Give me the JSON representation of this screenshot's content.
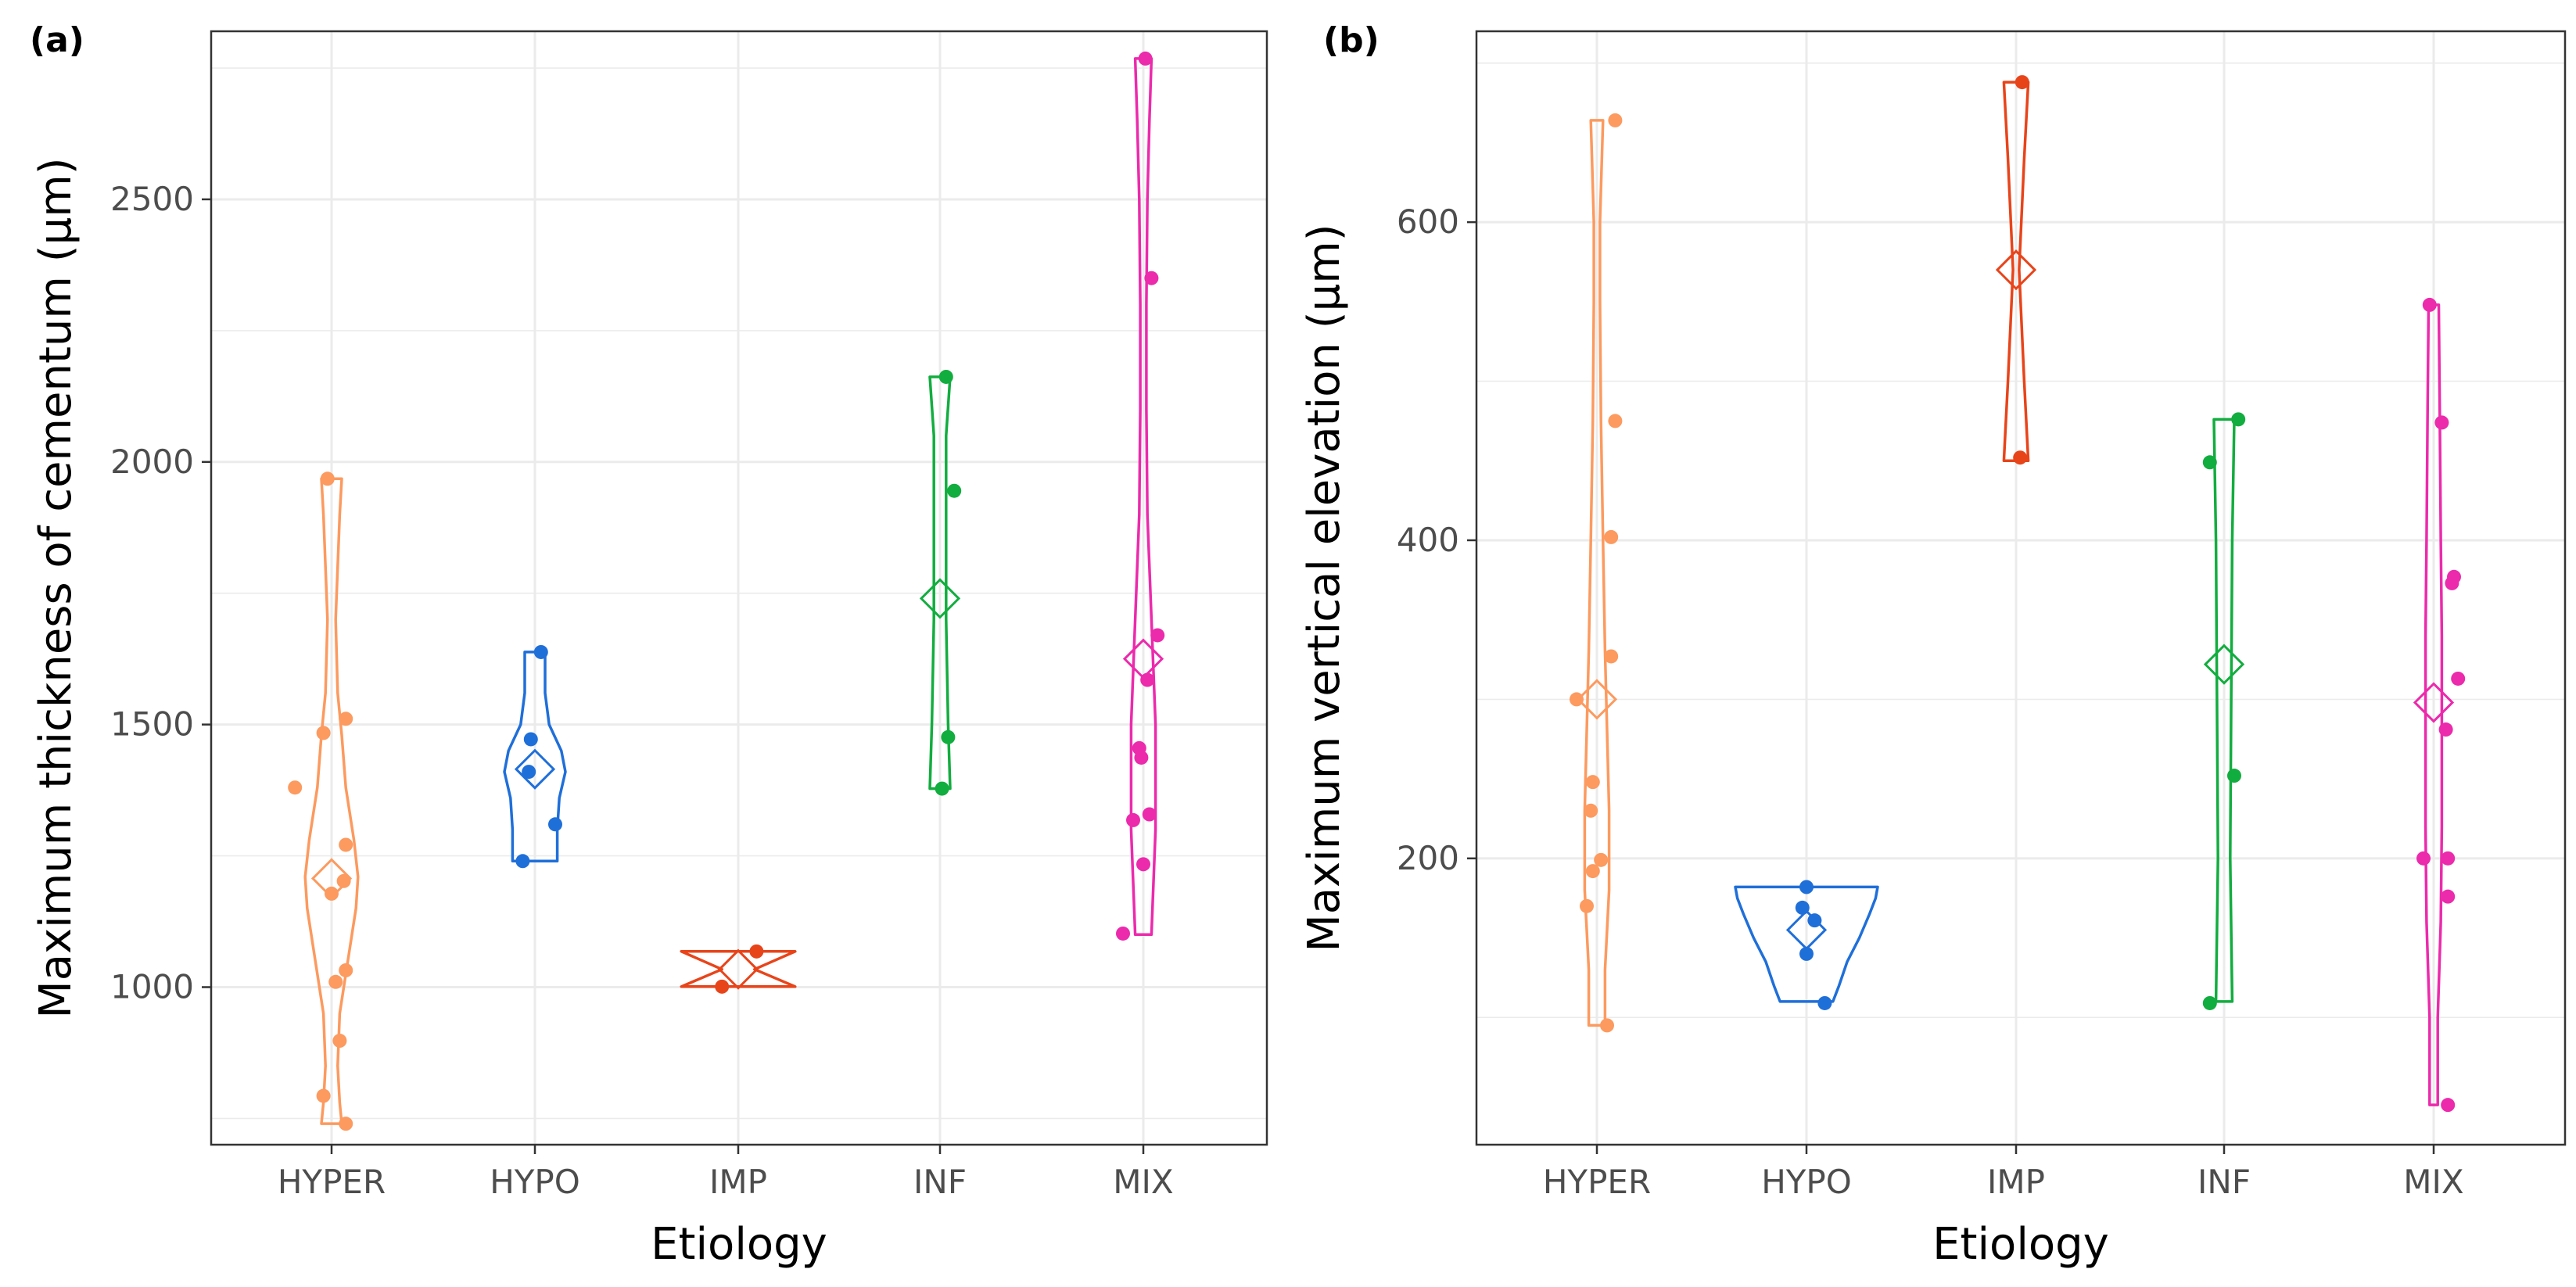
{
  "chart_data": [
    {
      "panel": "(a)",
      "type": "violin",
      "xlabel": "Etiology",
      "ylabel": "Maximum thickness of cementum (μm)",
      "categories": [
        "HYPER",
        "HYPO",
        "IMP",
        "INF",
        "MIX"
      ],
      "ylim": [
        700,
        2820
      ],
      "yticks": [
        1000,
        1500,
        2000,
        2500
      ],
      "grid": true,
      "colors": [
        "#fc9a5f",
        "#1f6fd9",
        "#e8441a",
        "#12ad3f",
        "#ec2aac"
      ],
      "series": [
        {
          "name": "HYPER",
          "mean": 1207,
          "points": [
            [
              -0.18,
              1380
            ],
            [
              -0.02,
              1968
            ],
            [
              -0.04,
              1484
            ],
            [
              0.07,
              1511
            ],
            [
              0.07,
              1271
            ],
            [
              0.06,
              1202
            ],
            [
              0.0,
              1178
            ],
            [
              0.02,
              1010
            ],
            [
              0.07,
              1032
            ],
            [
              0.04,
              898
            ],
            [
              -0.04,
              793
            ],
            [
              0.07,
              740
            ]
          ],
          "violin": [
            [
              740,
              0.05
            ],
            [
              780,
              0.04
            ],
            [
              850,
              0.03
            ],
            [
              950,
              0.04
            ],
            [
              1050,
              0.08
            ],
            [
              1150,
              0.12
            ],
            [
              1210,
              0.13
            ],
            [
              1280,
              0.11
            ],
            [
              1380,
              0.07
            ],
            [
              1480,
              0.05
            ],
            [
              1560,
              0.03
            ],
            [
              1700,
              0.02
            ],
            [
              1800,
              0.03
            ],
            [
              1900,
              0.04
            ],
            [
              1968,
              0.05
            ]
          ]
        },
        {
          "name": "HYPO",
          "mean": 1415,
          "points": [
            [
              -0.06,
              1240
            ],
            [
              -0.02,
              1472
            ],
            [
              -0.03,
              1410
            ],
            [
              0.03,
              1638
            ],
            [
              0.1,
              1310
            ]
          ],
          "violin": [
            [
              1240,
              0.11
            ],
            [
              1300,
              0.11
            ],
            [
              1360,
              0.12
            ],
            [
              1410,
              0.15
            ],
            [
              1450,
              0.13
            ],
            [
              1500,
              0.07
            ],
            [
              1560,
              0.05
            ],
            [
              1638,
              0.05
            ]
          ]
        },
        {
          "name": "IMP",
          "mean": 1034,
          "points": [
            [
              -0.08,
              1001
            ],
            [
              0.09,
              1068
            ]
          ],
          "violin": [
            [
              1001,
              0.28
            ],
            [
              1034,
              0.08
            ],
            [
              1068,
              0.28
            ]
          ]
        },
        {
          "name": "INF",
          "mean": 1740,
          "points": [
            [
              0.01,
              1378
            ],
            [
              0.04,
              1476
            ],
            [
              0.07,
              1945
            ],
            [
              0.03,
              2162
            ]
          ],
          "violin": [
            [
              1378,
              0.05
            ],
            [
              1500,
              0.04
            ],
            [
              1700,
              0.03
            ],
            [
              1900,
              0.03
            ],
            [
              2050,
              0.03
            ],
            [
              2162,
              0.05
            ]
          ]
        },
        {
          "name": "MIX",
          "mean": 1625,
          "points": [
            [
              -0.1,
              1102
            ],
            [
              -0.05,
              1318
            ],
            [
              -0.02,
              1455
            ],
            [
              -0.01,
              1437
            ],
            [
              0.0,
              1234
            ],
            [
              0.02,
              1585
            ],
            [
              0.03,
              1329
            ],
            [
              0.07,
              1670
            ],
            [
              0.04,
              2350
            ],
            [
              0.01,
              2768
            ]
          ],
          "violin": [
            [
              1100,
              0.04
            ],
            [
              1200,
              0.05
            ],
            [
              1300,
              0.06
            ],
            [
              1400,
              0.06
            ],
            [
              1500,
              0.06
            ],
            [
              1600,
              0.05
            ],
            [
              1700,
              0.04
            ],
            [
              1900,
              0.02
            ],
            [
              2100,
              0.015
            ],
            [
              2300,
              0.015
            ],
            [
              2500,
              0.02
            ],
            [
              2650,
              0.03
            ],
            [
              2768,
              0.04
            ]
          ]
        }
      ]
    },
    {
      "panel": "(b)",
      "type": "violin",
      "xlabel": "Etiology",
      "ylabel": "Maximum vertical elevation (μm)",
      "categories": [
        "HYPER",
        "HYPO",
        "IMP",
        "INF",
        "MIX"
      ],
      "ylim": [
        20,
        720
      ],
      "yticks": [
        200,
        400,
        600
      ],
      "grid": true,
      "colors": [
        "#fc9a5f",
        "#1f6fd9",
        "#e8441a",
        "#12ad3f",
        "#ec2aac"
      ],
      "series": [
        {
          "name": "HYPER",
          "mean": 300,
          "points": [
            [
              -0.1,
              300
            ],
            [
              0.09,
              664
            ],
            [
              0.09,
              475
            ],
            [
              0.07,
              402
            ],
            [
              0.07,
              327
            ],
            [
              -0.02,
              248
            ],
            [
              -0.03,
              230
            ],
            [
              0.02,
              199
            ],
            [
              -0.02,
              192
            ],
            [
              -0.05,
              170
            ],
            [
              0.05,
              95
            ]
          ],
          "violin": [
            [
              95,
              0.04
            ],
            [
              130,
              0.04
            ],
            [
              180,
              0.06
            ],
            [
              230,
              0.06
            ],
            [
              280,
              0.05
            ],
            [
              330,
              0.04
            ],
            [
              400,
              0.03
            ],
            [
              475,
              0.02
            ],
            [
              550,
              0.015
            ],
            [
              600,
              0.015
            ],
            [
              664,
              0.03
            ]
          ]
        },
        {
          "name": "HYPO",
          "mean": 155,
          "points": [
            [
              0.0,
              182
            ],
            [
              -0.02,
              169
            ],
            [
              0.04,
              161
            ],
            [
              0.0,
              140
            ],
            [
              0.09,
              109
            ]
          ],
          "violin": [
            [
              110,
              0.13
            ],
            [
              120,
              0.16
            ],
            [
              135,
              0.2
            ],
            [
              150,
              0.26
            ],
            [
              165,
              0.31
            ],
            [
              175,
              0.34
            ],
            [
              182,
              0.35
            ]
          ]
        },
        {
          "name": "IMP",
          "mean": 570,
          "points": [
            [
              0.03,
              688
            ],
            [
              0.02,
              452
            ]
          ],
          "violin": [
            [
              450,
              0.06
            ],
            [
              500,
              0.04
            ],
            [
              570,
              0.015
            ],
            [
              640,
              0.04
            ],
            [
              688,
              0.06
            ]
          ]
        },
        {
          "name": "INF",
          "mean": 322,
          "points": [
            [
              -0.07,
              109
            ],
            [
              -0.07,
              449
            ],
            [
              0.07,
              476
            ],
            [
              0.05,
              252
            ]
          ],
          "violin": [
            [
              110,
              0.04
            ],
            [
              200,
              0.03
            ],
            [
              300,
              0.035
            ],
            [
              400,
              0.04
            ],
            [
              476,
              0.05
            ]
          ]
        },
        {
          "name": "MIX",
          "mean": 298,
          "points": [
            [
              -0.02,
              548
            ],
            [
              -0.05,
              200
            ],
            [
              0.07,
              200
            ],
            [
              0.07,
              176
            ],
            [
              0.06,
              281
            ],
            [
              0.04,
              474
            ],
            [
              0.09,
              373
            ],
            [
              0.1,
              377
            ],
            [
              0.12,
              313
            ],
            [
              0.07,
              45
            ]
          ],
          "violin": [
            [
              45,
              0.02
            ],
            [
              100,
              0.02
            ],
            [
              160,
              0.035
            ],
            [
              220,
              0.04
            ],
            [
              280,
              0.04
            ],
            [
              340,
              0.04
            ],
            [
              400,
              0.035
            ],
            [
              480,
              0.03
            ],
            [
              548,
              0.025
            ]
          ]
        }
      ]
    }
  ]
}
